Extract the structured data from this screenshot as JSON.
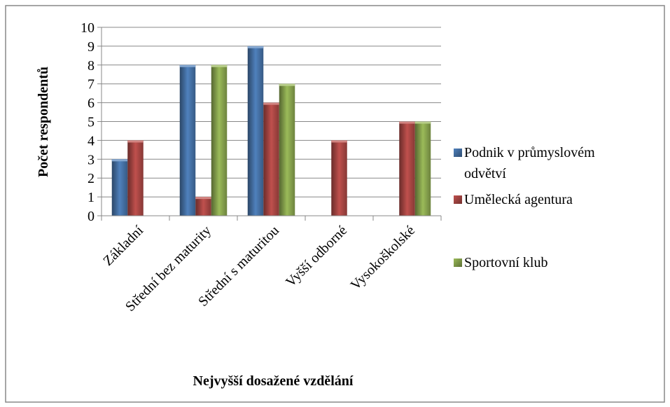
{
  "chart_data": {
    "type": "bar",
    "xlabel": "Nejvyšší dosažené vzdělání",
    "ylabel": "Počet respondentů",
    "categories": [
      "Základní",
      "Střední bez maturity",
      "Střední s maturitou",
      "Vyšší odborné",
      "Vysokoškolské"
    ],
    "series": [
      {
        "name": "Podnik v průmyslovém odvětví",
        "color": "#4f81bd",
        "values": [
          3,
          8,
          9,
          null,
          null
        ]
      },
      {
        "name": "Umělecká agentura",
        "color": "#c0504d",
        "values": [
          4,
          1,
          6,
          4,
          5
        ]
      },
      {
        "name": "Sportovní klub",
        "color": "#9bbb59",
        "values": [
          null,
          8,
          7,
          null,
          5
        ]
      }
    ],
    "ylim": [
      0,
      10
    ],
    "yticks": [
      0,
      1,
      2,
      3,
      4,
      5,
      6,
      7,
      8,
      9,
      10
    ],
    "grid": true
  }
}
